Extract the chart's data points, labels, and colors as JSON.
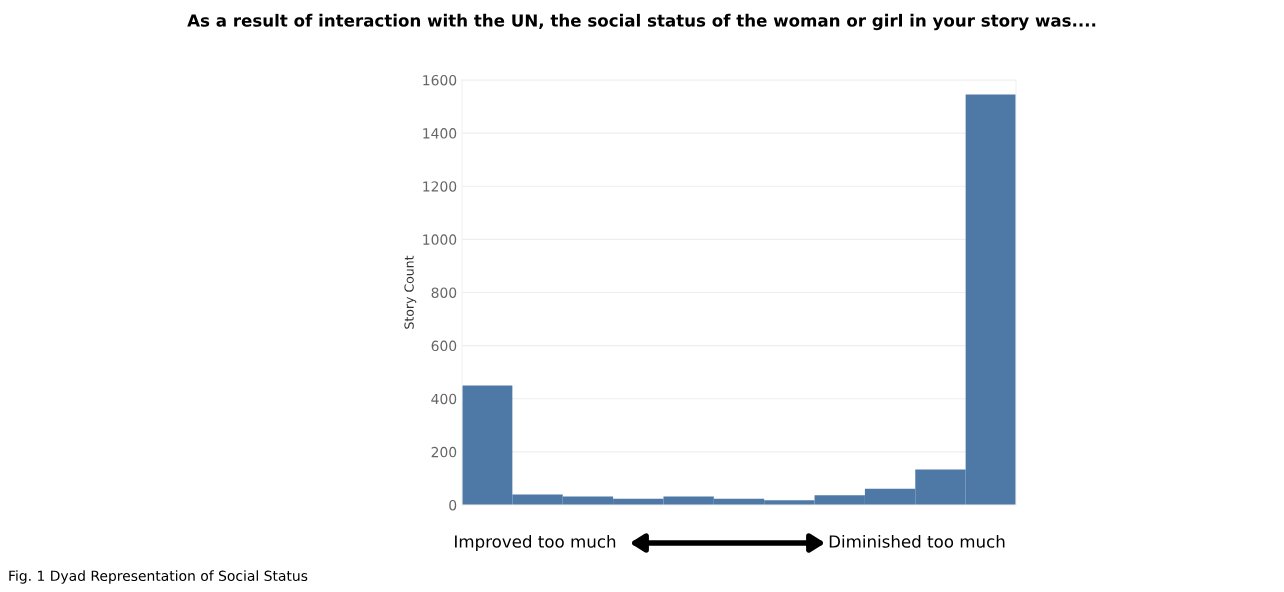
{
  "chart_data": {
    "type": "bar",
    "title": "As a result of interaction with the UN, the social status of the woman or girl in your story was....",
    "ylabel": "Story Count",
    "categories": [
      null,
      null,
      null,
      null,
      null,
      null,
      null,
      null,
      null,
      null,
      null
    ],
    "values": [
      450,
      40,
      32,
      24,
      32,
      24,
      18,
      37,
      61,
      134,
      1545
    ],
    "color": "#4e79a7",
    "ylim": [
      0,
      1600
    ],
    "yticks": [
      0,
      200,
      400,
      600,
      800,
      1000,
      1200,
      1400,
      1600
    ],
    "grid": "y",
    "annotations": [
      "Improved too much",
      "Diminished too much",
      "Fig. 1 Dyad Representation of Social Status"
    ]
  }
}
